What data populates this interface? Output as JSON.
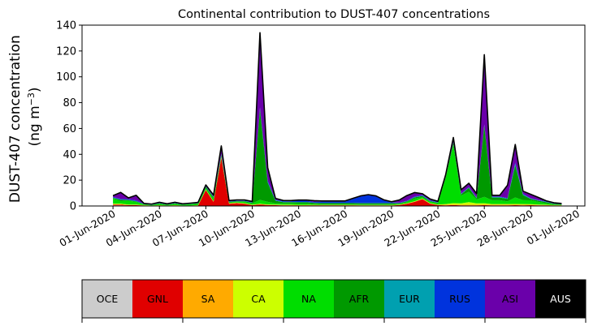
{
  "chart_data": {
    "type": "area",
    "stacked": true,
    "title": "Continental contribution to DUST-407 concentrations",
    "ylabel_line1": "DUST-407 concentration",
    "ylabel_line2": "(ng m",
    "ylabel_exp": "−3",
    "ylabel_close": ")",
    "xlabel": "",
    "ylim": [
      0,
      140
    ],
    "yticks": [
      0,
      20,
      40,
      60,
      80,
      100,
      120,
      140
    ],
    "xlim": [
      "2020-05-30",
      "2020-07-01T12:00"
    ],
    "xticks": [
      "01-Jun-2020",
      "04-Jun-2020",
      "07-Jun-2020",
      "10-Jun-2020",
      "13-Jun-2020",
      "16-Jun-2020",
      "19-Jun-2020",
      "22-Jun-2020",
      "25-Jun-2020",
      "28-Jun-2020",
      "01-Jul-2020"
    ],
    "xtick_dates": [
      "2020-06-01",
      "2020-06-04",
      "2020-06-07",
      "2020-06-10",
      "2020-06-13",
      "2020-06-16",
      "2020-06-19",
      "2020-06-22",
      "2020-06-25",
      "2020-06-28",
      "2020-07-01"
    ],
    "grid": false,
    "legend": "bottom colorbar",
    "x": [
      "2020-06-01",
      "2020-06-01T12:00",
      "2020-06-02",
      "2020-06-02T12:00",
      "2020-06-03",
      "2020-06-03T12:00",
      "2020-06-04",
      "2020-06-04T12:00",
      "2020-06-05",
      "2020-06-05T12:00",
      "2020-06-06",
      "2020-06-06T12:00",
      "2020-06-07",
      "2020-06-07T12:00",
      "2020-06-08",
      "2020-06-08T12:00",
      "2020-06-09",
      "2020-06-09T12:00",
      "2020-06-10",
      "2020-06-10T12:00",
      "2020-06-11",
      "2020-06-11T12:00",
      "2020-06-12",
      "2020-06-12T12:00",
      "2020-06-13",
      "2020-06-13T12:00",
      "2020-06-14",
      "2020-06-14T12:00",
      "2020-06-15",
      "2020-06-15T12:00",
      "2020-06-16",
      "2020-06-16T12:00",
      "2020-06-17",
      "2020-06-17T12:00",
      "2020-06-18",
      "2020-06-18T12:00",
      "2020-06-19",
      "2020-06-19T12:00",
      "2020-06-20",
      "2020-06-20T12:00",
      "2020-06-21",
      "2020-06-21T12:00",
      "2020-06-22",
      "2020-06-22T12:00",
      "2020-06-23",
      "2020-06-23T12:00",
      "2020-06-24",
      "2020-06-24T12:00",
      "2020-06-25",
      "2020-06-25T12:00",
      "2020-06-26",
      "2020-06-26T12:00",
      "2020-06-27",
      "2020-06-27T12:00",
      "2020-06-28",
      "2020-06-28T12:00",
      "2020-06-29",
      "2020-06-29T12:00",
      "2020-06-30"
    ],
    "series": [
      {
        "name": "OCE",
        "color": "#cccccc",
        "values": [
          0.5,
          0.5,
          0.3,
          0.3,
          0.2,
          0.1,
          0.2,
          0.1,
          0.2,
          0.1,
          0.1,
          0.2,
          0.3,
          0.2,
          0.2,
          0.2,
          0.2,
          0.2,
          0.1,
          0.2,
          0.2,
          0.3,
          0.2,
          0.2,
          0.2,
          0.2,
          0.2,
          0.2,
          0.2,
          0.2,
          0.2,
          0.2,
          0.1,
          0.1,
          0.1,
          0.1,
          0.1,
          0.2,
          0.2,
          0.2,
          0.3,
          0.2,
          0.2,
          0.2,
          0.2,
          0.2,
          0.2,
          0.2,
          0.3,
          0.2,
          0.2,
          0.2,
          0.3,
          0.2,
          0.3,
          0.2,
          0.2,
          0.1,
          0.1
        ]
      },
      {
        "name": "GNL",
        "color": "#e00000",
        "values": [
          0.5,
          0.5,
          0.3,
          0.3,
          0.2,
          0.1,
          0.2,
          0.1,
          0.2,
          0.1,
          0.1,
          0.2,
          12,
          3,
          37,
          1.5,
          2,
          1.5,
          0.5,
          1,
          0.5,
          0.3,
          0.3,
          0.3,
          0.3,
          0.3,
          0.3,
          0.3,
          0.3,
          0.3,
          0.3,
          0.3,
          0.3,
          0.3,
          0.3,
          0.3,
          0.3,
          0.5,
          1.5,
          3,
          5,
          1.5,
          0.5,
          0.3,
          0.5,
          0.3,
          0.3,
          0.3,
          0.3,
          0.3,
          0.3,
          0.3,
          0.3,
          0.3,
          0.3,
          0.3,
          0.3,
          0.3,
          0.3
        ]
      },
      {
        "name": "SA",
        "color": "#ffaa00",
        "values": [
          0.3,
          0.3,
          0.2,
          0.2,
          0.1,
          0.1,
          0.1,
          0.1,
          0.1,
          0.1,
          0.1,
          0.1,
          0.2,
          0.2,
          0.3,
          0.2,
          0.2,
          0.2,
          0.1,
          0.2,
          0.2,
          0.2,
          0.2,
          0.2,
          0.1,
          0.1,
          0.1,
          0.1,
          0.1,
          0.1,
          0.1,
          0.1,
          0.1,
          0.1,
          0.1,
          0.1,
          0.1,
          0.1,
          0.1,
          0.2,
          0.2,
          0.2,
          0.1,
          0.5,
          0.5,
          0.5,
          0.5,
          0.5,
          0.5,
          0.5,
          0.5,
          0.5,
          0.5,
          0.5,
          0.3,
          0.3,
          0.2,
          0.1,
          0.1
        ]
      },
      {
        "name": "CA",
        "color": "#ccff00",
        "values": [
          0.5,
          0.5,
          0.3,
          0.3,
          0.2,
          0.1,
          0.2,
          0.1,
          0.2,
          0.1,
          0.1,
          0.2,
          0.3,
          0.3,
          0.3,
          0.3,
          0.3,
          0.3,
          0.3,
          0.3,
          0.3,
          0.3,
          0.3,
          0.3,
          0.3,
          0.3,
          0.3,
          0.3,
          0.3,
          0.3,
          0.3,
          0.3,
          0.3,
          0.3,
          0.3,
          0.3,
          0.3,
          0.3,
          0.3,
          0.3,
          0.3,
          0.3,
          0.3,
          0.5,
          1,
          1,
          2,
          1,
          1,
          0.5,
          0.5,
          0.5,
          0.5,
          0.5,
          0.5,
          0.3,
          0.3,
          0.2,
          0.2
        ]
      },
      {
        "name": "NA",
        "color": "#00dd00",
        "values": [
          4,
          2,
          3,
          2,
          0.5,
          0.3,
          1,
          0.5,
          1,
          0.5,
          1,
          1,
          1,
          2,
          1,
          0.5,
          0.5,
          1,
          1,
          3,
          2,
          1,
          1,
          1,
          1,
          1,
          0.5,
          0.3,
          0.3,
          0.3,
          0.3,
          0.3,
          0.3,
          0.3,
          0.3,
          0.3,
          0.3,
          0.5,
          1,
          2,
          1,
          1,
          1,
          20,
          45,
          6,
          8,
          3,
          5,
          3,
          3,
          2,
          5,
          3,
          3,
          2,
          1,
          0.5,
          0.3
        ]
      },
      {
        "name": "AFR",
        "color": "#009900",
        "values": [
          0.5,
          1,
          0.5,
          0.5,
          0.2,
          0.2,
          0.3,
          0.2,
          0.3,
          0.2,
          0.2,
          0.3,
          1,
          1,
          1,
          0.5,
          0.5,
          0.5,
          0.5,
          70,
          15,
          2,
          1,
          1,
          1,
          1,
          1,
          1,
          1,
          1,
          1,
          1,
          1,
          1,
          1,
          1,
          1,
          0.5,
          0.5,
          1,
          1,
          0.5,
          0.5,
          1,
          2,
          1,
          3,
          1,
          55,
          2,
          2,
          2,
          25,
          4,
          1,
          1,
          1,
          0.5,
          0.3
        ]
      },
      {
        "name": "EUR",
        "color": "#00a0b0",
        "values": [
          0.2,
          0.2,
          0.2,
          0.2,
          0.1,
          0.1,
          0.1,
          0.1,
          0.1,
          0.1,
          0.1,
          0.1,
          0.2,
          0.2,
          0.2,
          0.2,
          0.2,
          0.2,
          0.2,
          0.5,
          0.5,
          0.3,
          0.3,
          0.2,
          0.2,
          0.2,
          0.2,
          0.2,
          0.2,
          0.2,
          0.2,
          0.2,
          0.2,
          0.2,
          0.2,
          0.2,
          0.2,
          0.2,
          0.2,
          0.2,
          0.2,
          0.2,
          0.2,
          0.3,
          0.3,
          0.3,
          0.3,
          0.3,
          0.5,
          0.5,
          0.5,
          0.3,
          1,
          0.5,
          0.3,
          0.2,
          0.2,
          0.1,
          0.1
        ]
      },
      {
        "name": "RUS",
        "color": "#0033dd",
        "values": [
          0.5,
          0.5,
          0.5,
          0.5,
          0.2,
          0.2,
          0.3,
          0.2,
          0.3,
          0.2,
          0.2,
          0.2,
          0.3,
          0.5,
          0.5,
          0.3,
          0.3,
          0.3,
          0.3,
          1,
          1,
          0.5,
          0.5,
          0.5,
          1,
          1,
          0.5,
          1,
          1,
          1,
          1,
          3,
          5,
          6,
          5,
          2,
          0.5,
          0.3,
          0.3,
          0.5,
          0.5,
          0.5,
          0.3,
          0.3,
          0.5,
          0.3,
          0.3,
          0.3,
          0.5,
          0.3,
          0.3,
          0.3,
          1,
          0.5,
          0.3,
          0.3,
          0.3,
          0.2,
          0.2
        ]
      },
      {
        "name": "ASI",
        "color": "#6a00aa",
        "values": [
          1,
          5,
          1,
          4,
          0.3,
          0.3,
          0.5,
          0.3,
          0.5,
          0.3,
          0.3,
          0.5,
          1,
          1,
          6,
          0.5,
          0.5,
          0.5,
          0.5,
          58,
          10,
          1,
          0.5,
          0.5,
          0.5,
          0.5,
          1,
          0.5,
          0.5,
          0.5,
          0.5,
          0.5,
          0.5,
          0.5,
          0.5,
          0.5,
          0.5,
          2,
          4,
          3,
          1,
          1,
          0.5,
          1,
          3,
          3,
          3,
          3,
          54,
          1,
          1,
          10,
          14,
          2,
          3,
          2,
          0.5,
          0.5,
          0.3
        ]
      },
      {
        "name": "AUS",
        "color": "#000000",
        "values": [
          0,
          0,
          0,
          0,
          0,
          0,
          0,
          0,
          0,
          0,
          0,
          0,
          0,
          0,
          0,
          0,
          0,
          0,
          0,
          0,
          0,
          0,
          0,
          0,
          0,
          0,
          0,
          0,
          0,
          0,
          0,
          0,
          0,
          0,
          0,
          0,
          0,
          0,
          0,
          0,
          0,
          0,
          0,
          0,
          0,
          0,
          0,
          0,
          0,
          0,
          0,
          0,
          0,
          0,
          0,
          0,
          0,
          0,
          0
        ]
      }
    ]
  }
}
